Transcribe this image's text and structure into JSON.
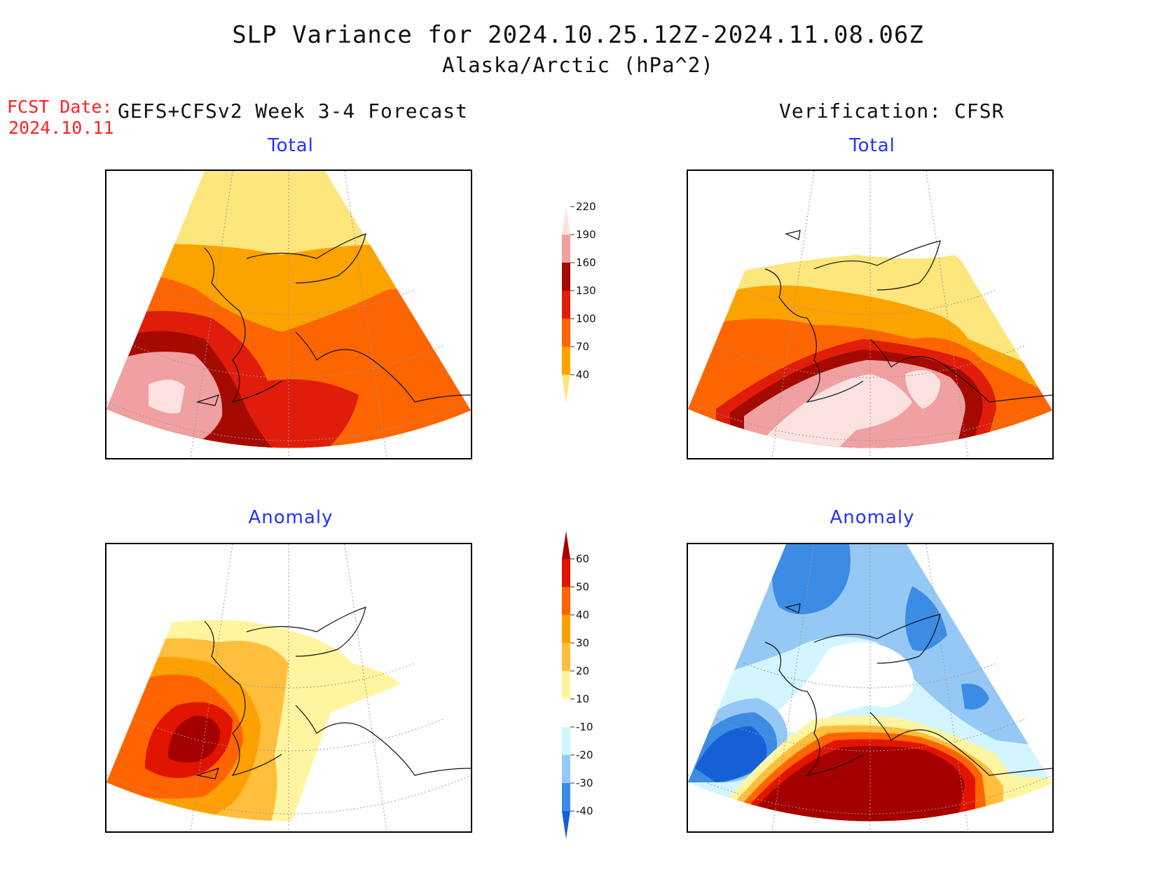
{
  "header": {
    "title": "SLP Variance for 2024.10.25.12Z-2024.11.08.06Z",
    "subtitle": "Alaska/Arctic (hPa^2)",
    "fcst_label": "FCST Date:",
    "fcst_date": "2024.10.11",
    "left_column": "GEFS+CFSv2 Week 3-4 Forecast",
    "right_column": "Verification: CFSR"
  },
  "panels": {
    "fcst_total": {
      "title": "Total"
    },
    "verif_total": {
      "title": "Total"
    },
    "fcst_anom": {
      "title": "Anomaly"
    },
    "verif_anom": {
      "title": "Anomaly"
    }
  },
  "colorbars": {
    "total": {
      "labels": [
        "40",
        "70",
        "100",
        "130",
        "160",
        "190",
        "220"
      ],
      "colors": [
        "#fde67c",
        "#fca300",
        "#fc6500",
        "#e01c0a",
        "#a50a00",
        "#f0a0a0",
        "#fce1e1"
      ]
    },
    "anomaly": {
      "labels": [
        "-40",
        "-30",
        "-20",
        "-10",
        "10",
        "20",
        "30",
        "40",
        "50",
        "60"
      ],
      "colors": [
        "#1560d6",
        "#3c8ce6",
        "#96c8f5",
        "#d2f5ff",
        "#ffffff",
        "#fff5a0",
        "#ffbe3c",
        "#ffa000",
        "#ff6400",
        "#e11400",
        "#a50000"
      ]
    }
  }
}
